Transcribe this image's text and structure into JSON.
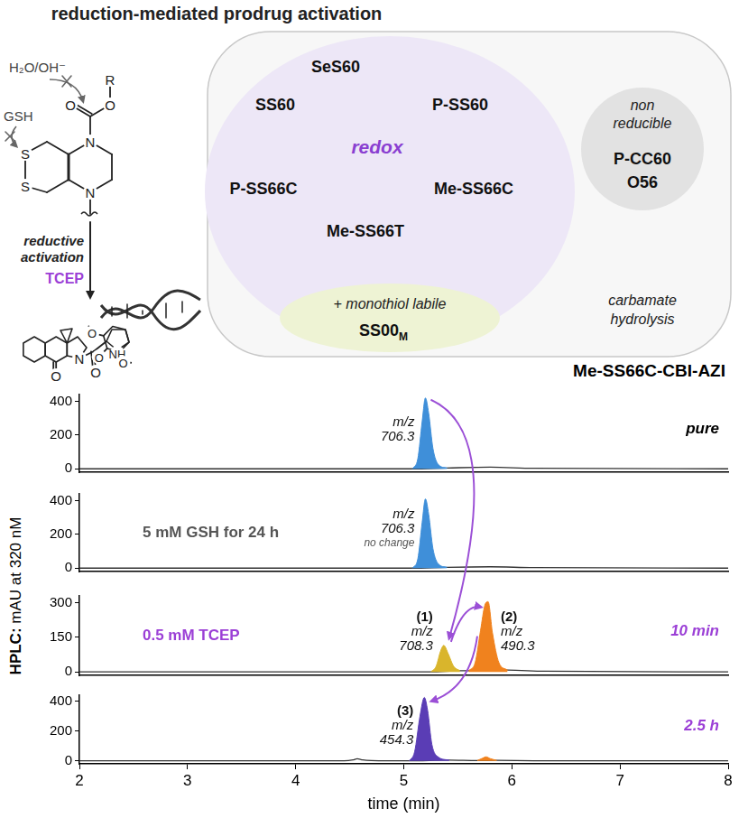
{
  "diagram": {
    "title": "reduction-mediated prodrug activation",
    "prodrug": {
      "atom_labels": [
        "R",
        "O",
        "O",
        "N",
        "N",
        "S",
        "S"
      ],
      "attackers": [
        "H₂O/OH⁻",
        "GSH"
      ],
      "activation": [
        "reductive",
        "activation"
      ],
      "reagent": "TCEP"
    },
    "drug": {
      "atom_labels": [
        "O",
        "N",
        "O",
        "NH",
        "O",
        "O",
        "O"
      ]
    },
    "groups": {
      "redox": {
        "label": "redox",
        "color": "#8a3fd1",
        "members": [
          "SeS60",
          "SS60",
          "P-SS60",
          "P-SS66C",
          "Me-SS66C",
          "Me-SS66T"
        ]
      },
      "monothiol": {
        "label": "+ monothiol labile",
        "members": [
          {
            "text": "SS00",
            "sub": "M"
          }
        ]
      },
      "non_reducible": {
        "label": [
          "non",
          "reducible"
        ],
        "members": [
          "P-CC60",
          "O56"
        ]
      },
      "all": {
        "label": [
          "carbamate",
          "hydrolysis"
        ]
      }
    }
  },
  "y_label": "HPLC: mAU at 320 nM",
  "chart_data": [
    {
      "type": "line",
      "title": "Me-SS66C-CBI-AZI",
      "xlim": [
        2,
        8
      ],
      "xticks": [
        2,
        3,
        4,
        5,
        6,
        7,
        8
      ],
      "ylim": [
        -20,
        440
      ],
      "yticks": [
        0,
        200,
        400
      ],
      "tick_labels": "y",
      "right": {
        "text": "pure",
        "color": "#000000"
      },
      "series": [
        {
          "type": "line",
          "color": "#333333",
          "x": [
            2,
            5.08,
            5.4,
            5.8,
            6.2,
            8
          ],
          "values": [
            0,
            0,
            5,
            10,
            3,
            0
          ]
        },
        {
          "type": "area",
          "color": "#3f8fd9",
          "x": [
            5.08,
            5.13,
            5.17,
            5.2,
            5.23,
            5.27,
            5.32,
            5.4
          ],
          "values": [
            0,
            60,
            280,
            420,
            330,
            120,
            25,
            5
          ],
          "annotation": "m/z 706.3"
        }
      ]
    },
    {
      "type": "line",
      "xlim": [
        2,
        8
      ],
      "xticks": [
        2,
        3,
        4,
        5,
        6,
        7,
        8
      ],
      "ylim": [
        -20,
        440
      ],
      "yticks": [
        0,
        200,
        400
      ],
      "tick_labels": "y",
      "left": {
        "text": "5 mM GSH for 24 h",
        "color": "#555555"
      },
      "series": [
        {
          "type": "line",
          "color": "#333333",
          "x": [
            2,
            5.08,
            5.4,
            5.8,
            6.2,
            8
          ],
          "values": [
            0,
            0,
            5,
            8,
            3,
            0
          ]
        },
        {
          "type": "area",
          "color": "#3f8fd9",
          "x": [
            5.08,
            5.13,
            5.17,
            5.2,
            5.23,
            5.27,
            5.32,
            5.4
          ],
          "values": [
            0,
            55,
            270,
            410,
            320,
            115,
            25,
            5
          ],
          "annotation": "m/z 706.3",
          "note": "no change"
        }
      ]
    },
    {
      "type": "line",
      "xlim": [
        2,
        8
      ],
      "xticks": [
        2,
        3,
        4,
        5,
        6,
        7,
        8
      ],
      "ylim": [
        -15,
        330
      ],
      "yticks": [
        0,
        150,
        300
      ],
      "tick_labels": "y",
      "left": {
        "text": "0.5 mM TCEP",
        "color": "#9b3fd6"
      },
      "right": {
        "text": "10 min",
        "color": "#9b3fd6"
      },
      "series": [
        {
          "type": "line",
          "color": "#333333",
          "x": [
            2,
            5.25,
            5.52,
            5.6,
            5.96,
            6.3,
            8
          ],
          "values": [
            0,
            0,
            5,
            5,
            8,
            3,
            0
          ]
        },
        {
          "type": "area",
          "color": "#d9b52c",
          "x": [
            5.25,
            5.3,
            5.34,
            5.37,
            5.41,
            5.46,
            5.52
          ],
          "values": [
            0,
            25,
            90,
            115,
            80,
            25,
            5
          ],
          "tag": "(1)",
          "annotation": "m/z 708.3"
        },
        {
          "type": "area",
          "color": "#f0821e",
          "x": [
            5.6,
            5.66,
            5.71,
            5.75,
            5.78,
            5.82,
            5.88,
            5.96
          ],
          "values": [
            5,
            40,
            180,
            290,
            305,
            170,
            40,
            8
          ],
          "tag": "(2)",
          "annotation": "m/z 490.3"
        }
      ]
    },
    {
      "type": "line",
      "xlim": [
        2,
        8
      ],
      "xticks": [
        2,
        3,
        4,
        5,
        6,
        7,
        8
      ],
      "ylim": [
        -20,
        440
      ],
      "yticks": [
        0,
        200,
        400
      ],
      "x_label": "time (min)",
      "right": {
        "text": "2.5 h",
        "color": "#9b3fd6"
      },
      "series": [
        {
          "type": "line",
          "color": "#333333",
          "x": [
            2,
            4.45,
            4.53,
            4.57,
            4.62,
            4.7,
            5.05,
            5.42,
            5.68,
            5.86,
            6.2,
            8
          ],
          "values": [
            0,
            0,
            6,
            14,
            6,
            2,
            0,
            5,
            2,
            3,
            1,
            0
          ]
        },
        {
          "type": "area",
          "color": "#5a3db5",
          "x": [
            5.05,
            5.1,
            5.15,
            5.19,
            5.22,
            5.26,
            5.32,
            5.42
          ],
          "values": [
            0,
            60,
            300,
            425,
            340,
            110,
            25,
            5
          ],
          "tag": "(3)",
          "annotation": "m/z 454.3"
        },
        {
          "type": "area",
          "color": "#f0821e",
          "x": [
            5.68,
            5.73,
            5.76,
            5.8,
            5.86
          ],
          "values": [
            2,
            18,
            27,
            15,
            3
          ]
        }
      ]
    }
  ]
}
